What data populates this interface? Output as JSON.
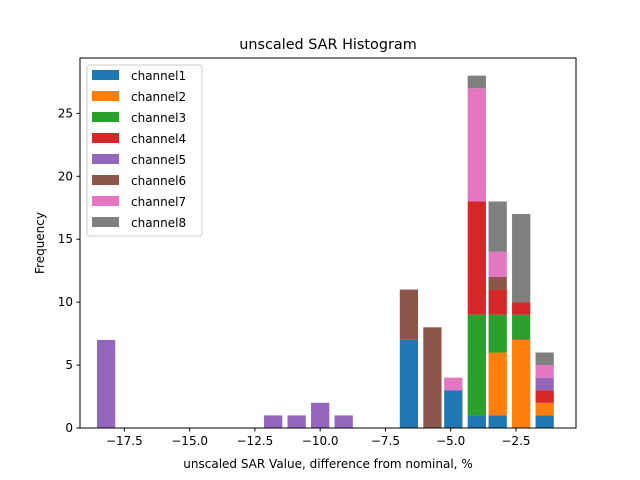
{
  "colors": {
    "channel1": "#1f77b4",
    "channel2": "#ff7f0e",
    "channel3": "#2ca02c",
    "channel4": "#d62728",
    "channel5": "#9467bd",
    "channel6": "#8c564b",
    "channel7": "#e377c2",
    "channel8": "#7f7f7f"
  },
  "chart_data": {
    "type": "bar",
    "stacked": true,
    "title": "unscaled SAR Histogram",
    "xlabel": "unscaled SAR Value, difference from nominal, %",
    "ylabel": "Frequency",
    "xlim": [
      -19.2,
      -0.2
    ],
    "ylim": [
      0,
      29.4
    ],
    "bar_width": 0.7,
    "x_ticks": [
      -17.5,
      -15.0,
      -12.5,
      -10.0,
      -7.5,
      -5.0,
      -2.5
    ],
    "x_tick_labels": [
      "−17.5",
      "−15.0",
      "−12.5",
      "−10.0",
      "−7.5",
      "−5.0",
      "−2.5"
    ],
    "y_ticks": [
      0,
      5,
      10,
      15,
      20,
      25
    ],
    "y_tick_labels": [
      "0",
      "5",
      "10",
      "15",
      "20",
      "25"
    ],
    "legend_position": "top-left",
    "bins": [
      -18.2,
      -11.8,
      -10.9,
      -10.0,
      -9.1,
      -6.6,
      -5.7,
      -4.9,
      -4.0,
      -3.2,
      -2.3,
      -1.4
    ],
    "series": [
      {
        "name": "channel1",
        "values": [
          0,
          0,
          0,
          0,
          0,
          7,
          0,
          3,
          1,
          1,
          0,
          1
        ]
      },
      {
        "name": "channel2",
        "values": [
          0,
          0,
          0,
          0,
          0,
          0,
          0,
          0,
          0,
          5,
          7,
          1
        ]
      },
      {
        "name": "channel3",
        "values": [
          0,
          0,
          0,
          0,
          0,
          0,
          0,
          0,
          8,
          3,
          2,
          0
        ]
      },
      {
        "name": "channel4",
        "values": [
          0,
          0,
          0,
          0,
          0,
          0,
          0,
          0,
          9,
          2,
          1,
          1
        ]
      },
      {
        "name": "channel5",
        "values": [
          7,
          1,
          1,
          2,
          1,
          0,
          0,
          0,
          0,
          0,
          0,
          1
        ]
      },
      {
        "name": "channel6",
        "values": [
          0,
          0,
          0,
          0,
          0,
          4,
          8,
          0,
          0,
          1,
          0,
          0
        ]
      },
      {
        "name": "channel7",
        "values": [
          0,
          0,
          0,
          0,
          0,
          0,
          0,
          1,
          9,
          2,
          0,
          1
        ]
      },
      {
        "name": "channel8",
        "values": [
          0,
          0,
          0,
          0,
          0,
          0,
          0,
          0,
          1,
          4,
          7,
          1
        ]
      }
    ]
  }
}
